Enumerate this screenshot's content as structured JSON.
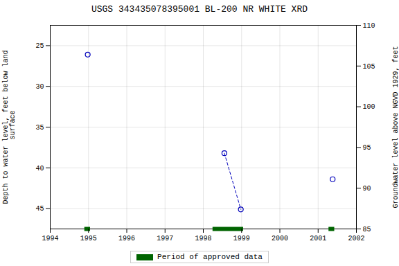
{
  "chart_data": {
    "type": "scatter",
    "title": "USGS 343435078395001 BL-200 NR WHITE XRD",
    "ylabel": "Depth to water level, feet below land\n surface",
    "y2label": "Groundwater level above NGVD 1929, feet",
    "xlim": [
      1994,
      2002
    ],
    "xticks": [
      1994,
      1995,
      1996,
      1997,
      1998,
      1999,
      2000,
      2001,
      2002
    ],
    "ylim": [
      47.5,
      22.5
    ],
    "yticks": [
      25,
      30,
      35,
      40,
      45
    ],
    "y2lim": [
      85,
      110
    ],
    "y2ticks": [
      85,
      90,
      95,
      100,
      105,
      110
    ],
    "grid": true,
    "legend": "bottom",
    "series": [
      {
        "type": "scatter",
        "marker": "circle",
        "color": "#0000bb",
        "x": [
          1994.98,
          1998.55,
          1998.98,
          2001.38
        ],
        "values": [
          26.1,
          38.2,
          45.1,
          41.4
        ]
      },
      {
        "type": "line",
        "line_style": "dashed",
        "color": "#0000bb",
        "x": [
          1998.55,
          1998.98
        ],
        "values": [
          38.2,
          45.1
        ]
      }
    ],
    "approved_periods": {
      "name": "Period of approved data",
      "color": "#006400",
      "x_start": [
        1994.9,
        1998.25,
        2001.28
      ],
      "x_end": [
        1995.05,
        1999.05,
        2001.43
      ]
    }
  }
}
